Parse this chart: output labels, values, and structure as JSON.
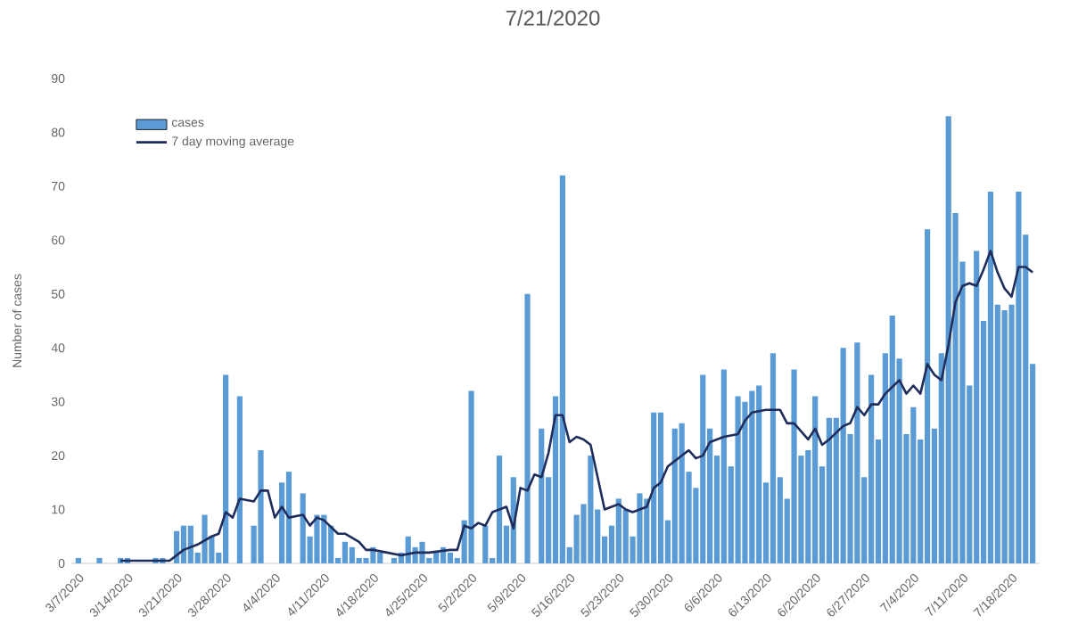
{
  "chart_data": {
    "type": "bar",
    "title": "7/21/2020",
    "ylabel": "Number of cases",
    "x": [
      "2020-03-07",
      "2020-03-08",
      "2020-03-09",
      "2020-03-10",
      "2020-03-11",
      "2020-03-12",
      "2020-03-13",
      "2020-03-14",
      "2020-03-15",
      "2020-03-16",
      "2020-03-17",
      "2020-03-18",
      "2020-03-19",
      "2020-03-20",
      "2020-03-21",
      "2020-03-22",
      "2020-03-23",
      "2020-03-24",
      "2020-03-25",
      "2020-03-26",
      "2020-03-27",
      "2020-03-28",
      "2020-03-29",
      "2020-03-30",
      "2020-03-31",
      "2020-04-01",
      "2020-04-02",
      "2020-04-03",
      "2020-04-04",
      "2020-04-05",
      "2020-04-06",
      "2020-04-07",
      "2020-04-08",
      "2020-04-09",
      "2020-04-10",
      "2020-04-11",
      "2020-04-12",
      "2020-04-13",
      "2020-04-14",
      "2020-04-15",
      "2020-04-16",
      "2020-04-17",
      "2020-04-18",
      "2020-04-19",
      "2020-04-20",
      "2020-04-21",
      "2020-04-22",
      "2020-04-23",
      "2020-04-24",
      "2020-04-25",
      "2020-04-26",
      "2020-04-27",
      "2020-04-28",
      "2020-04-29",
      "2020-04-30",
      "2020-05-01",
      "2020-05-02",
      "2020-05-03",
      "2020-05-04",
      "2020-05-05",
      "2020-05-06",
      "2020-05-07",
      "2020-05-08",
      "2020-05-09",
      "2020-05-10",
      "2020-05-11",
      "2020-05-12",
      "2020-05-13",
      "2020-05-14",
      "2020-05-15",
      "2020-05-16",
      "2020-05-17",
      "2020-05-18",
      "2020-05-19",
      "2020-05-20",
      "2020-05-21",
      "2020-05-22",
      "2020-05-23",
      "2020-05-24",
      "2020-05-25",
      "2020-05-26",
      "2020-05-27",
      "2020-05-28",
      "2020-05-29",
      "2020-05-30",
      "2020-05-31",
      "2020-06-01",
      "2020-06-02",
      "2020-06-03",
      "2020-06-04",
      "2020-06-05",
      "2020-06-06",
      "2020-06-07",
      "2020-06-08",
      "2020-06-09",
      "2020-06-10",
      "2020-06-11",
      "2020-06-12",
      "2020-06-13",
      "2020-06-14",
      "2020-06-15",
      "2020-06-16",
      "2020-06-17",
      "2020-06-18",
      "2020-06-19",
      "2020-06-20",
      "2020-06-21",
      "2020-06-22",
      "2020-06-23",
      "2020-06-24",
      "2020-06-25",
      "2020-06-26",
      "2020-06-27",
      "2020-06-28",
      "2020-06-29",
      "2020-06-30",
      "2020-07-01",
      "2020-07-02",
      "2020-07-03",
      "2020-07-04",
      "2020-07-05",
      "2020-07-06",
      "2020-07-07",
      "2020-07-08",
      "2020-07-09",
      "2020-07-10",
      "2020-07-11",
      "2020-07-12",
      "2020-07-13",
      "2020-07-14",
      "2020-07-15",
      "2020-07-16",
      "2020-07-17",
      "2020-07-18",
      "2020-07-19",
      "2020-07-20",
      "2020-07-21"
    ],
    "series": [
      {
        "name": "cases",
        "color": "#5b9bd5",
        "values": [
          1,
          0,
          0,
          1,
          0,
          0,
          1,
          1,
          0,
          0,
          0,
          1,
          1,
          0,
          6,
          7,
          7,
          2,
          9,
          5,
          2,
          35,
          0,
          31,
          0,
          7,
          21,
          0,
          0,
          15,
          17,
          0,
          13,
          5,
          9,
          9,
          7,
          1,
          4,
          3,
          1,
          1,
          3,
          2,
          0,
          1,
          2,
          5,
          3,
          4,
          1,
          2,
          3,
          2,
          1,
          8,
          32,
          0,
          7,
          1,
          20,
          7,
          16,
          0,
          50,
          0,
          25,
          16,
          31,
          72,
          3,
          9,
          11,
          20,
          10,
          5,
          7,
          12,
          10,
          5,
          13,
          12,
          28,
          28,
          8,
          25,
          26,
          17,
          14,
          35,
          25,
          20,
          36,
          18,
          31,
          30,
          32,
          33,
          15,
          39,
          16,
          12,
          36,
          20,
          21,
          31,
          18,
          27,
          27,
          40,
          24,
          41,
          16,
          35,
          23,
          39,
          46,
          38,
          24,
          29,
          23,
          62,
          25,
          39,
          83,
          65,
          56,
          33,
          58,
          45,
          69,
          48,
          47,
          48,
          69,
          61,
          37
        ]
      },
      {
        "name": "7 day moving average",
        "type": "line",
        "color": "#1f2d5c",
        "x": [
          "2020-03-13",
          "2020-03-20",
          "2020-03-22",
          "2020-03-23",
          "2020-03-24",
          "2020-03-26",
          "2020-03-27",
          "2020-03-28",
          "2020-03-29",
          "2020-03-30",
          "2020-04-01",
          "2020-04-02",
          "2020-04-03",
          "2020-04-04",
          "2020-04-05",
          "2020-04-06",
          "2020-04-08",
          "2020-04-09",
          "2020-04-10",
          "2020-04-11",
          "2020-04-13",
          "2020-04-14",
          "2020-04-16",
          "2020-04-17",
          "2020-04-18",
          "2020-04-20",
          "2020-04-22",
          "2020-04-24",
          "2020-04-26",
          "2020-04-29",
          "2020-04-30",
          "2020-05-01",
          "2020-05-02",
          "2020-05-03",
          "2020-05-04",
          "2020-05-05",
          "2020-05-07",
          "2020-05-08",
          "2020-05-09",
          "2020-05-10",
          "2020-05-11",
          "2020-05-12",
          "2020-05-13",
          "2020-05-14",
          "2020-05-15",
          "2020-05-16",
          "2020-05-17",
          "2020-05-18",
          "2020-05-19",
          "2020-05-20",
          "2020-05-21",
          "2020-05-23",
          "2020-05-24",
          "2020-05-25",
          "2020-05-27",
          "2020-05-28",
          "2020-05-29",
          "2020-05-30",
          "2020-06-01",
          "2020-06-02",
          "2020-06-03",
          "2020-06-04",
          "2020-06-05",
          "2020-06-07",
          "2020-06-09",
          "2020-06-10",
          "2020-06-11",
          "2020-06-13",
          "2020-06-15",
          "2020-06-16",
          "2020-06-17",
          "2020-06-19",
          "2020-06-20",
          "2020-06-21",
          "2020-06-22",
          "2020-06-24",
          "2020-06-25",
          "2020-06-26",
          "2020-06-27",
          "2020-06-28",
          "2020-06-29",
          "2020-06-30",
          "2020-07-02",
          "2020-07-03",
          "2020-07-04",
          "2020-07-05",
          "2020-07-06",
          "2020-07-07",
          "2020-07-08",
          "2020-07-09",
          "2020-07-10",
          "2020-07-11",
          "2020-07-12",
          "2020-07-13",
          "2020-07-14",
          "2020-07-15",
          "2020-07-16",
          "2020-07-17",
          "2020-07-18",
          "2020-07-19",
          "2020-07-20",
          "2020-07-21"
        ],
        "values": [
          0.5,
          0.5,
          2.5,
          3,
          3.5,
          5,
          5.5,
          9.5,
          8.5,
          12,
          11.5,
          13.5,
          13.5,
          8.5,
          10.5,
          8.5,
          9,
          7,
          8.5,
          8,
          5.5,
          5.5,
          4,
          2.5,
          2.5,
          2,
          1.5,
          2,
          2,
          2.5,
          2.5,
          7,
          6.5,
          7.5,
          7,
          9.5,
          10.5,
          6.5,
          14,
          13.5,
          16.5,
          16,
          20.5,
          27.5,
          27.5,
          22.5,
          23.5,
          23,
          22,
          16,
          10,
          11,
          10,
          9.5,
          10.5,
          14,
          15,
          18,
          20,
          21,
          19.5,
          20,
          22.5,
          23.5,
          24,
          26.5,
          28,
          28.5,
          28.5,
          26,
          26,
          23,
          25,
          22,
          23,
          25.5,
          26,
          29,
          27.5,
          29.5,
          29.5,
          31.5,
          34,
          31.5,
          33,
          31.5,
          37,
          35,
          34,
          40.5,
          48.5,
          51.5,
          52,
          51.5,
          54.5,
          58,
          54,
          51,
          49.5,
          55,
          55,
          54
        ]
      }
    ],
    "xlim": [
      "2020-03-06",
      "2020-07-22"
    ],
    "xticks": [
      {
        "value": "2020-03-07",
        "label": "3/7/2020"
      },
      {
        "value": "2020-03-14",
        "label": "3/14/2020"
      },
      {
        "value": "2020-03-21",
        "label": "3/21/2020"
      },
      {
        "value": "2020-03-28",
        "label": "3/28/2020"
      },
      {
        "value": "2020-04-04",
        "label": "4/4/2020"
      },
      {
        "value": "2020-04-11",
        "label": "4/11/2020"
      },
      {
        "value": "2020-04-18",
        "label": "4/18/2020"
      },
      {
        "value": "2020-04-25",
        "label": "4/25/2020"
      },
      {
        "value": "2020-05-02",
        "label": "5/2/2020"
      },
      {
        "value": "2020-05-09",
        "label": "5/9/2020"
      },
      {
        "value": "2020-05-16",
        "label": "5/16/2020"
      },
      {
        "value": "2020-05-23",
        "label": "5/23/2020"
      },
      {
        "value": "2020-05-30",
        "label": "5/30/2020"
      },
      {
        "value": "2020-06-06",
        "label": "6/6/2020"
      },
      {
        "value": "2020-06-13",
        "label": "6/13/2020"
      },
      {
        "value": "2020-06-20",
        "label": "6/20/2020"
      },
      {
        "value": "2020-06-27",
        "label": "6/27/2020"
      },
      {
        "value": "2020-07-04",
        "label": "7/4/2020"
      },
      {
        "value": "2020-07-11",
        "label": "7/11/2020"
      },
      {
        "value": "2020-07-18",
        "label": "7/18/2020"
      }
    ],
    "ylim": [
      0,
      90
    ],
    "yticks": [
      0,
      10,
      20,
      30,
      40,
      50,
      60,
      70,
      80,
      90
    ],
    "legend": "top left",
    "grid": false
  }
}
